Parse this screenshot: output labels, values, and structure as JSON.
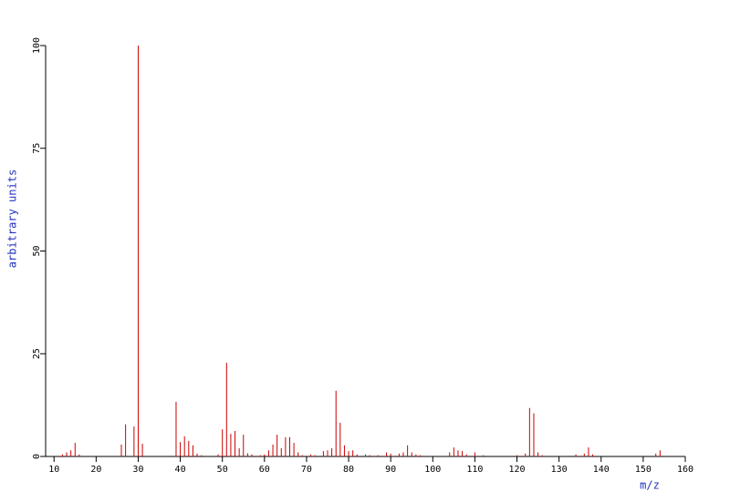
{
  "chart_data": {
    "type": "stem",
    "xlabel": "m/z",
    "ylabel": "arbitrary units",
    "color": "#cc0000",
    "xlim": [
      8,
      160
    ],
    "ylim": [
      0,
      100
    ],
    "xticks": [
      10,
      20,
      30,
      40,
      50,
      60,
      70,
      80,
      90,
      100,
      110,
      120,
      130,
      140,
      150,
      160
    ],
    "yticks": [
      0,
      25,
      50,
      75,
      100
    ],
    "x": [
      12,
      13,
      14,
      15,
      16,
      26,
      27,
      29,
      30,
      31,
      39,
      40,
      41,
      42,
      43,
      44,
      45,
      49,
      50,
      51,
      52,
      53,
      54,
      55,
      56,
      57,
      59,
      60,
      61,
      62,
      63,
      64,
      65,
      66,
      67,
      68,
      69,
      71,
      72,
      74,
      75,
      76,
      77,
      78,
      79,
      80,
      81,
      82,
      84,
      85,
      87,
      89,
      90,
      92,
      93,
      94,
      95,
      96,
      97,
      104,
      105,
      106,
      107,
      108,
      110,
      112,
      120,
      122,
      123,
      124,
      125,
      126,
      134,
      136,
      137,
      138,
      153,
      154
    ],
    "values": [
      0.5,
      1,
      1.5,
      3.3,
      0.5,
      2.9,
      7.8,
      7.3,
      100,
      3.1,
      13.3,
      3.5,
      4.9,
      3.8,
      2.7,
      0.7,
      0.3,
      0.5,
      6.6,
      22.8,
      5.5,
      6.2,
      2,
      5.3,
      0.8,
      0.5,
      0.3,
      0.5,
      1.5,
      2.9,
      5.3,
      2,
      4.7,
      4.7,
      3.3,
      1,
      0.3,
      0.5,
      0.3,
      1.3,
      1.5,
      2,
      16,
      8.2,
      2.7,
      1.3,
      1.5,
      0.5,
      0.5,
      0.3,
      0.3,
      1,
      0.7,
      0.7,
      1,
      2.7,
      1,
      0.5,
      0.3,
      1,
      2.2,
      1.5,
      1.3,
      0.5,
      1,
      0.3,
      0.3,
      0.7,
      11.8,
      10.5,
      1,
      0.3,
      0.5,
      0.7,
      2.2,
      0.5,
      0.7,
      1.5
    ]
  }
}
